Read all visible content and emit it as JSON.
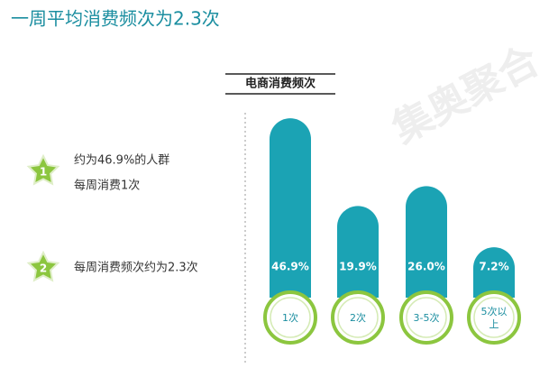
{
  "chart_data": {
    "type": "bar",
    "title": "一周平均消费频次为2.3次",
    "subtitle": "电商消费频次",
    "categories": [
      "1次",
      "2次",
      "3-5次",
      "5次以上"
    ],
    "values": [
      46.9,
      19.9,
      26.0,
      7.2
    ],
    "value_labels": [
      "46.9%",
      "19.9%",
      "26.0%",
      "7.2%"
    ],
    "color": "#1ba3b4",
    "notes": [
      {
        "badge": "1",
        "lines": [
          "约为46.9%的人群",
          "每周消费1次"
        ]
      },
      {
        "badge": "2",
        "lines": [
          "每周消费频次约为2.3次"
        ]
      }
    ],
    "watermark": "集奥聚合"
  }
}
